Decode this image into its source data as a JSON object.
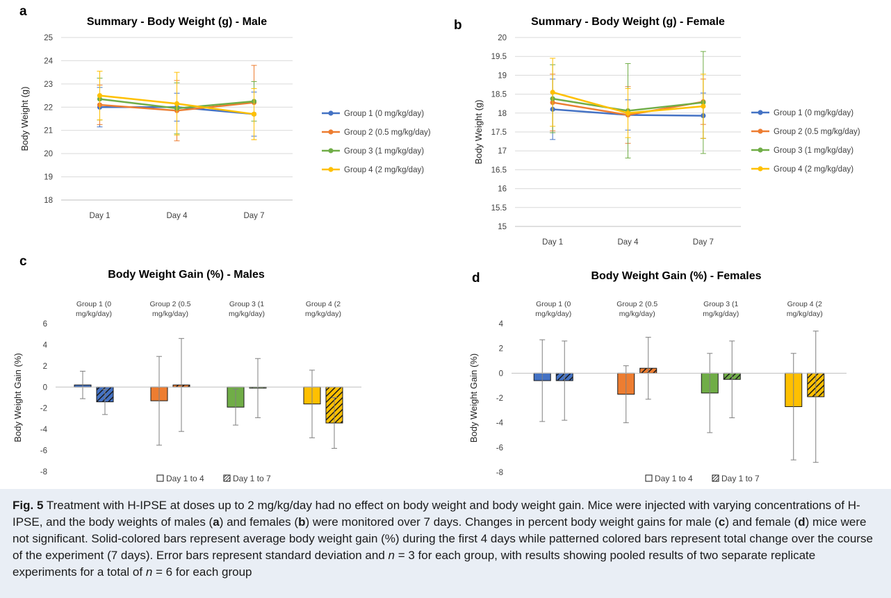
{
  "colors": {
    "blue": "#4472c4",
    "orange": "#ed7d31",
    "green": "#70ad47",
    "yellow": "#ffc000",
    "caption_bg": "#e9eef5",
    "error_gray": "#7f7f7f"
  },
  "chart_data": [
    {
      "type": "line",
      "panel_label": "a",
      "title": "Summary - Body Weight (g) - Male",
      "ylabel": "Body Weight (g)",
      "xlabel": "",
      "categories": [
        "Day 1",
        "Day 4",
        "Day 7"
      ],
      "ylim": [
        18,
        25
      ],
      "yticks": [
        18,
        19,
        20,
        21,
        22,
        23,
        24,
        25
      ],
      "grid": true,
      "legend_position": "right",
      "series": [
        {
          "name": "Group 1 (0 mg/kg/day)",
          "color": "#4472c4",
          "values": [
            22.0,
            22.0,
            21.7
          ],
          "errors": [
            0.85,
            0.6,
            0.95
          ]
        },
        {
          "name": "Group 2 (0.5 mg/kg/day)",
          "color": "#ed7d31",
          "values": [
            22.1,
            21.85,
            22.2
          ],
          "errors": [
            0.85,
            1.3,
            1.6
          ]
        },
        {
          "name": "Group 3 (1 mg/kg/day)",
          "color": "#70ad47",
          "values": [
            22.35,
            21.95,
            22.25
          ],
          "errors": [
            0.9,
            1.1,
            0.85
          ]
        },
        {
          "name": "Group 4 (2 mg/kg/day)",
          "color": "#ffc000",
          "values": [
            22.5,
            22.15,
            21.7
          ],
          "errors": [
            1.05,
            1.35,
            1.1
          ]
        }
      ]
    },
    {
      "type": "line",
      "panel_label": "b",
      "title": "Summary - Body Weight (g) - Female",
      "ylabel": "Body Weight (g)",
      "xlabel": "",
      "categories": [
        "Day 1",
        "Day 4",
        "Day 7"
      ],
      "ylim": [
        15,
        20
      ],
      "yticks": [
        15,
        15.5,
        16,
        16.5,
        17,
        17.5,
        18,
        18.5,
        19,
        19.5,
        20
      ],
      "grid": true,
      "legend_position": "right",
      "series": [
        {
          "name": "Group 1 (0 mg/kg/day)",
          "color": "#4472c4",
          "values": [
            18.1,
            17.95,
            17.93
          ],
          "errors": [
            0.8,
            0.4,
            0.6
          ]
        },
        {
          "name": "Group 2 (0.5 mg/kg/day)",
          "color": "#ed7d31",
          "values": [
            18.28,
            17.95,
            18.3
          ],
          "errors": [
            0.75,
            0.75,
            0.6
          ]
        },
        {
          "name": "Group 3 (1 mg/kg/day)",
          "color": "#70ad47",
          "values": [
            18.38,
            18.06,
            18.28
          ],
          "errors": [
            0.9,
            1.25,
            1.35
          ]
        },
        {
          "name": "Group 4 (2 mg/kg/day)",
          "color": "#ffc000",
          "values": [
            18.55,
            18.0,
            18.18
          ],
          "errors": [
            0.9,
            0.65,
            0.85
          ]
        }
      ]
    },
    {
      "type": "bar",
      "panel_label": "c",
      "title": "Body Weight Gain (%) - Males",
      "ylabel": "Body Weight Gain (%)",
      "xlabel": "",
      "categories": [
        "Group 1 (0 mg/kg/day)",
        "Group 2 (0.5 mg/kg/day)",
        "Group 3 (1 mg/kg/day)",
        "Group 4 (2 mg/kg/day)"
      ],
      "category_labels": [
        [
          "Group 1 (0",
          "mg/kg/day)"
        ],
        [
          "Group 2 (0.5",
          "mg/kg/day)"
        ],
        [
          "Group 3 (1",
          "mg/kg/day)"
        ],
        [
          "Group 4 (2",
          "mg/kg/day)"
        ]
      ],
      "category_colors": [
        "#4472c4",
        "#ed7d31",
        "#70ad47",
        "#ffc000"
      ],
      "ylim": [
        -8,
        6
      ],
      "yticks": [
        -8,
        -6,
        -4,
        -2,
        0,
        2,
        4,
        6
      ],
      "grid": false,
      "legend_position": "bottom",
      "series": [
        {
          "name": "Day 1 to 4",
          "pattern": "solid",
          "values": [
            0.2,
            -1.3,
            -1.9,
            -1.6
          ],
          "errors": [
            1.3,
            4.2,
            1.7,
            3.2
          ]
        },
        {
          "name": "Day 1 to 7",
          "pattern": "hatched",
          "values": [
            -1.4,
            0.2,
            -0.1,
            -3.4
          ],
          "errors": [
            1.2,
            4.4,
            2.8,
            2.4
          ]
        }
      ]
    },
    {
      "type": "bar",
      "panel_label": "d",
      "title": "Body Weight Gain (%) - Females",
      "ylabel": "Body Weight Gain (%)",
      "xlabel": "",
      "categories": [
        "Group 1 (0 mg/kg/day)",
        "Group 2 (0.5 mg/kg/day)",
        "Group 3 (1 mg/kg/day)",
        "Group 4 (2 mg/kg/day)"
      ],
      "category_labels": [
        [
          "Group 1 (0",
          "mg/kg/day)"
        ],
        [
          "Group 2 (0.5",
          "mg/kg/day)"
        ],
        [
          "Group 3 (1",
          "mg/kg/day)"
        ],
        [
          "Group 4 (2",
          "mg/kg/day)"
        ]
      ],
      "category_colors": [
        "#4472c4",
        "#ed7d31",
        "#70ad47",
        "#ffc000"
      ],
      "ylim": [
        -8,
        4
      ],
      "yticks": [
        -8,
        -6,
        -4,
        -2,
        0,
        2,
        4
      ],
      "grid": false,
      "legend_position": "bottom",
      "series": [
        {
          "name": "Day 1 to 4",
          "pattern": "solid",
          "values": [
            -0.6,
            -1.7,
            -1.6,
            -2.7
          ],
          "errors": [
            3.3,
            2.3,
            3.2,
            4.3
          ]
        },
        {
          "name": "Day 1 to 7",
          "pattern": "hatched",
          "values": [
            -0.6,
            0.4,
            -0.5,
            -1.9
          ],
          "errors": [
            3.2,
            2.5,
            3.1,
            5.3
          ]
        }
      ]
    }
  ],
  "caption": {
    "label": "Fig. 5",
    "parts": [
      {
        "t": "Treatment with H-IPSE at doses up to 2 mg/kg/day had no effect on body weight and body weight gain. Mice were injected with varying concentrations of H-IPSE, and the body weights of males ("
      },
      {
        "t": "a",
        "s": "b"
      },
      {
        "t": ") and females ("
      },
      {
        "t": "b",
        "s": "b"
      },
      {
        "t": ") were monitored over 7 days. Changes in percent body weight gains for male ("
      },
      {
        "t": "c",
        "s": "b"
      },
      {
        "t": ") and female ("
      },
      {
        "t": "d",
        "s": "b"
      },
      {
        "t": ") mice were not significant. Solid-colored bars represent average body weight gain (%) during the first 4 days while patterned colored bars represent total change over the course of the experiment (7 days). Error bars represent standard deviation and "
      },
      {
        "t": "n",
        "s": "i"
      },
      {
        "t": " = 3 for each group, with results showing pooled results of two separate replicate experiments for a total of "
      },
      {
        "t": "n",
        "s": "i"
      },
      {
        "t": " = 6 for each group"
      }
    ]
  }
}
